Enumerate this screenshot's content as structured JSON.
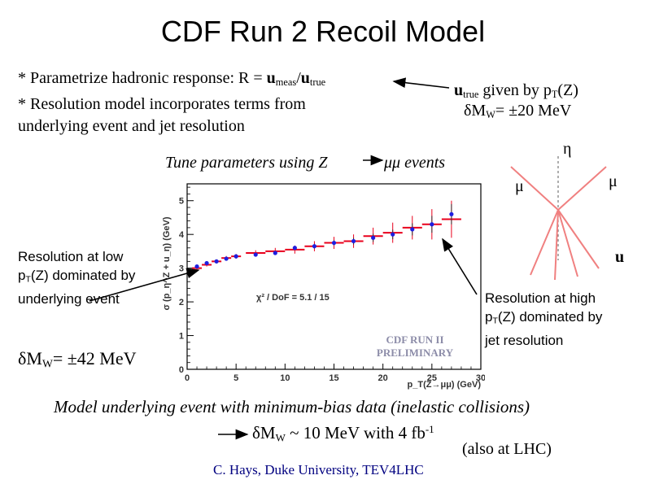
{
  "slide": {
    "title": "CDF Run 2 Recoil Model",
    "bullet1": {
      "prefix": "* Parametrize hadronic response: R = ",
      "u1": "u",
      "sub1": "meas",
      "slash": "/",
      "u2": "u",
      "sub2": "true"
    },
    "bullet2_line1": "* Resolution model incorporates terms from",
    "bullet2_line2": "underlying event and jet resolution",
    "utrue_note": {
      "u": "u",
      "sub": "true",
      "rest": " given by p",
      "sub2": "T",
      "end": "(Z)"
    },
    "dmw_top": {
      "delta": "δM",
      "sub": "W",
      "rest": "= ±20 MeV"
    },
    "tune": {
      "left": "Tune parameters using Z",
      "right": "μμ events"
    },
    "left_note": {
      "line1": "Resolution at low",
      "line2_pre": "p",
      "line2_sub": "T",
      "line2_post": "(Z) dominated by",
      "line3": "underlying event"
    },
    "dmw_left": {
      "delta": "δM",
      "sub": "W",
      "rest": "= ±42 MeV"
    },
    "right_note": {
      "line1": "Resolution at high",
      "line2_pre": "p",
      "line2_sub": "T",
      "line2_post": "(Z) dominated by",
      "line3": "jet resolution"
    },
    "diagram": {
      "eta": "η",
      "mu_left": "μ",
      "mu_right": "μ",
      "u": "u"
    },
    "model_line": "Model underlying event with minimum-bias data (inelastic collisions)",
    "future": {
      "delta": "δM",
      "sub": "W",
      "rest": " ~ 10 MeV with 4 fb",
      "sup": "-1"
    },
    "also_lhc": "(also at LHC)",
    "footer": "C. Hays, Duke University, TEV4LHC",
    "colors": {
      "data_points": "#1e1ee0",
      "model_bars": "#e8001c",
      "arrow": "#000000",
      "diagram_lines": "#f08080"
    }
  },
  "chart_data": {
    "type": "scatter",
    "xlabel": "p_T(Z→μμ) (GeV)",
    "ylabel": "σ (p_η^Z + u_η) (GeV)",
    "xlim": [
      0,
      30
    ],
    "ylim": [
      0,
      5.5
    ],
    "xticks": [
      "0",
      "5",
      "10",
      "15",
      "20",
      "25",
      "30"
    ],
    "yticks": [
      "0",
      "1",
      "2",
      "3",
      "4",
      "5"
    ],
    "annotation": "χ² / DoF = 5.1 / 15",
    "watermark": [
      "CDF RUN II",
      "PRELIMINARY"
    ],
    "series": [
      {
        "x": [
          1,
          2,
          3,
          4,
          5,
          7,
          9,
          11,
          13,
          15,
          17,
          19,
          21,
          23,
          25,
          27
        ],
        "y": [
          3.05,
          3.15,
          3.2,
          3.28,
          3.35,
          3.4,
          3.45,
          3.6,
          3.65,
          3.75,
          3.8,
          3.9,
          4.0,
          4.15,
          4.3,
          4.6
        ],
        "err": [
          0.03,
          0.03,
          0.03,
          0.04,
          0.04,
          0.04,
          0.05,
          0.06,
          0.07,
          0.08,
          0.1,
          0.12,
          0.14,
          0.18,
          0.25,
          0.3
        ]
      },
      {
        "x": [
          1,
          2,
          3,
          4,
          5,
          7,
          9,
          11,
          13,
          15,
          17,
          19,
          21,
          23,
          25,
          27
        ],
        "y": [
          3.0,
          3.1,
          3.2,
          3.3,
          3.35,
          3.45,
          3.5,
          3.55,
          3.65,
          3.75,
          3.8,
          3.95,
          4.05,
          4.2,
          4.3,
          4.45
        ],
        "err": [
          0.05,
          0.05,
          0.06,
          0.06,
          0.07,
          0.08,
          0.1,
          0.12,
          0.15,
          0.18,
          0.2,
          0.25,
          0.3,
          0.35,
          0.45,
          0.55
        ]
      }
    ]
  }
}
